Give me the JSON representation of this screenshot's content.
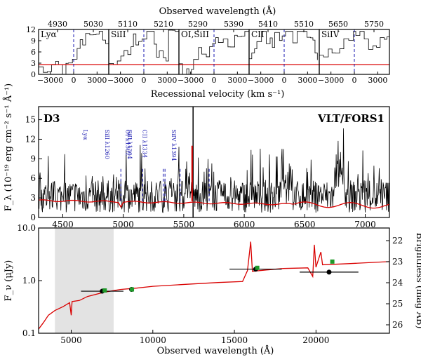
{
  "chart_data": [
    {
      "type": "line",
      "panel": "top",
      "top_axis_label": "Observed wavelength (Å)",
      "xlabel": "Recessional velocity (km s⁻¹)",
      "ylabel": "F_λ (10⁻¹⁹ erg cm⁻² s⁻¹ Å⁻¹)",
      "ylim": [
        0,
        12
      ],
      "yticks": [
        "12",
        "9",
        "6",
        "3",
        "0"
      ],
      "xlim_velocity": [
        -4500,
        4500
      ],
      "xticks_velocity": [
        "−3000",
        "0",
        "3000"
      ],
      "subpanels": [
        {
          "line": "Lyα",
          "top_ticks": [
            "4930",
            "5030"
          ]
        },
        {
          "line": "SiII",
          "top_ticks": [
            "5110",
            "5210"
          ]
        },
        {
          "line": "OI,SiII",
          "top_ticks": [
            "5290",
            "5390"
          ]
        },
        {
          "line": "CII",
          "top_ticks": [
            "5410",
            "5510"
          ]
        },
        {
          "line": "SiIV",
          "top_ticks": [
            "5650",
            "5750"
          ]
        }
      ],
      "model_level": 2.6
    },
    {
      "type": "line",
      "panel": "middle",
      "label_left": "D3",
      "label_right": "VLT/FORS1",
      "ylabel": "F_λ (10⁻¹⁹ erg cm⁻² s⁻¹ Å⁻¹)",
      "xlim": [
        4300,
        7200
      ],
      "ylim": [
        0,
        17
      ],
      "xticks": [
        "4500",
        "5000",
        "5500",
        "6000",
        "6500",
        "7000"
      ],
      "yticks": [
        "15",
        "12",
        "9",
        "6",
        "3",
        "0"
      ],
      "lines": [
        {
          "label": "Lyα",
          "wavelength": 4980
        },
        {
          "label": "SiII λ1260",
          "wavelength": 5160
        },
        {
          "label": "OI λ1302",
          "wavelength": 5330
        },
        {
          "label": "SiII λ1304",
          "wavelength": 5345
        },
        {
          "label": "CII λ1334",
          "wavelength": 5470
        },
        {
          "label": "SiIV λ1394",
          "wavelength": 5710
        }
      ]
    },
    {
      "type": "line",
      "panel": "bottom",
      "xlabel": "Observed wavelength (Å)",
      "ylabel": "F_ν (μJy)",
      "ylabel_right": "Brightness (mag AB)",
      "xlim": [
        3000,
        24500
      ],
      "ylim": [
        0.1,
        10.0
      ],
      "xticks": [
        "5000",
        "10000",
        "15000",
        "20000"
      ],
      "yticks": [
        "10.0",
        "1.0",
        "0.1"
      ],
      "yticks_right": [
        "22",
        "23",
        "24",
        "25",
        "26"
      ],
      "shaded_range": [
        4000,
        7600
      ],
      "photometry_observed": [
        {
          "x": 6900,
          "y": 0.63,
          "xerr": 1300
        },
        {
          "x": 8700,
          "y": 0.68,
          "xerr": 0
        },
        {
          "x": 16300,
          "y": 1.65,
          "xerr": 1600
        },
        {
          "x": 20800,
          "y": 1.45,
          "xerr": 1800
        }
      ],
      "photometry_model": [
        {
          "x": 7050,
          "y": 0.65
        },
        {
          "x": 8720,
          "y": 0.68
        },
        {
          "x": 16400,
          "y": 1.75
        },
        {
          "x": 21000,
          "y": 2.3
        }
      ]
    }
  ]
}
